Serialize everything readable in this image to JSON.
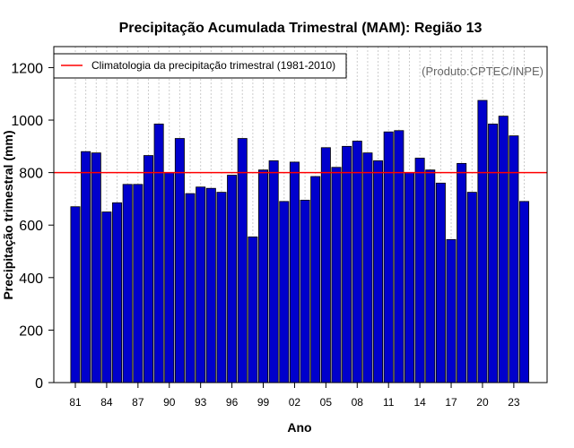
{
  "chart_data": {
    "type": "bar",
    "title": "Precipitação Acumulada Trimestral (MAM): Região 13",
    "xlabel": "Ano",
    "ylabel": "Precipitação trimestral (mm)",
    "credit": "(Produto:CPTEC/INPE)",
    "legend": {
      "label": "Climatologia da precipitação trimestral (1981-2010)",
      "placement": "top-left"
    },
    "ylim": [
      0,
      1280
    ],
    "yticks": [
      0,
      200,
      400,
      600,
      800,
      1000,
      1200
    ],
    "xtick_labels": [
      "81",
      "84",
      "87",
      "90",
      "93",
      "96",
      "99",
      "02",
      "05",
      "08",
      "11",
      "14",
      "17",
      "20",
      "23"
    ],
    "xtick_years": [
      1981,
      1984,
      1987,
      1990,
      1993,
      1996,
      1999,
      2002,
      2005,
      2008,
      2011,
      2014,
      2017,
      2020,
      2023
    ],
    "climatology": 800,
    "grid": "vertical dotted",
    "colors": {
      "bar": "#0000cc",
      "bar_edge": "#000000",
      "climatology_line": "#ff0000",
      "grid": "#cccccc"
    },
    "categories": [
      1981,
      1982,
      1983,
      1984,
      1985,
      1986,
      1987,
      1988,
      1989,
      1990,
      1991,
      1992,
      1993,
      1994,
      1995,
      1996,
      1997,
      1998,
      1999,
      2000,
      2001,
      2002,
      2003,
      2004,
      2005,
      2006,
      2007,
      2008,
      2009,
      2010,
      2011,
      2012,
      2013,
      2014,
      2015,
      2016,
      2017,
      2018,
      2019,
      2020,
      2021,
      2022,
      2023,
      2024
    ],
    "values": [
      670,
      880,
      875,
      650,
      685,
      755,
      755,
      865,
      985,
      800,
      930,
      720,
      745,
      740,
      725,
      790,
      930,
      555,
      810,
      845,
      690,
      840,
      695,
      785,
      895,
      820,
      900,
      920,
      875,
      845,
      955,
      960,
      800,
      855,
      810,
      760,
      545,
      835,
      725,
      1075,
      985,
      1015,
      940,
      690
    ]
  }
}
